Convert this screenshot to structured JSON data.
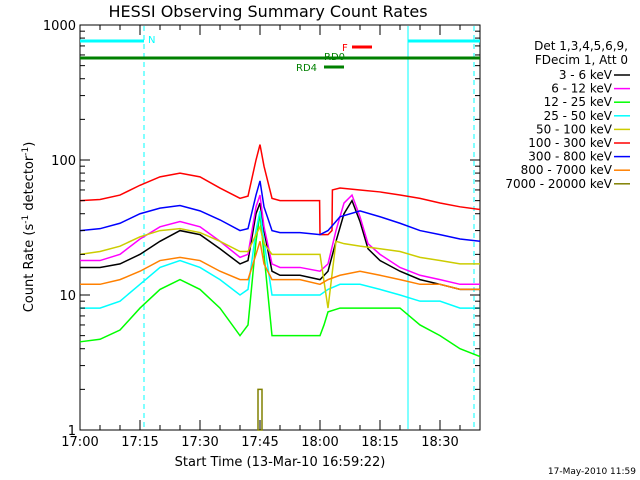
{
  "chart_data": {
    "type": "line",
    "title": "HESSI Observing Summary Count Rates",
    "xlabel": "Start Time (13-Mar-10 16:59:22)",
    "ylabel": "Count Rate (s⁻¹ detector⁻¹)",
    "ylabel_parts": {
      "main": "Count Rate (s",
      "exp1": "-1",
      "mid": " detector",
      "exp2": "-1",
      "end": ")"
    },
    "y_scale": "log",
    "ylim": [
      1,
      1000
    ],
    "xlim_minutes": [
      0,
      100
    ],
    "x_ticks": [
      {
        "label": "17:00",
        "minute": 0
      },
      {
        "label": "17:15",
        "minute": 15
      },
      {
        "label": "17:30",
        "minute": 30
      },
      {
        "label": "17:45",
        "minute": 45
      },
      {
        "label": "18:00",
        "minute": 60
      },
      {
        "label": "18:15",
        "minute": 75
      },
      {
        "label": "18:30",
        "minute": 90
      }
    ],
    "y_ticks": [
      {
        "label": "1",
        "value": 1
      },
      {
        "label": "10",
        "value": 10
      },
      {
        "label": "100",
        "value": 100
      },
      {
        "label": "1000",
        "value": 1000
      }
    ],
    "legend_header": [
      "Det 1,3,4,5,6,9,",
      "FDecim 1, Att 0"
    ],
    "legend_position": "right",
    "series": [
      {
        "name": "3 - 6 keV",
        "color": "#000000",
        "x": [
          0,
          5,
          10,
          15,
          20,
          25,
          30,
          35,
          40,
          42,
          44,
          45,
          46,
          48,
          50,
          55,
          60,
          62,
          64,
          66,
          68,
          70,
          72,
          75,
          80,
          85,
          90,
          95,
          100
        ],
        "y": [
          16,
          16,
          17,
          20,
          25,
          30,
          28,
          22,
          17,
          18,
          40,
          48,
          30,
          15,
          14,
          14,
          13,
          15,
          25,
          40,
          50,
          35,
          22,
          18,
          15,
          13,
          12,
          11,
          11
        ]
      },
      {
        "name": "6 - 12 keV",
        "color": "#ff00ff",
        "x": [
          0,
          5,
          10,
          15,
          20,
          25,
          30,
          35,
          40,
          42,
          44,
          45,
          46,
          48,
          50,
          55,
          60,
          62,
          64,
          66,
          68,
          70,
          72,
          75,
          80,
          85,
          90,
          95,
          100
        ],
        "y": [
          18,
          18,
          20,
          26,
          32,
          35,
          32,
          25,
          19,
          20,
          45,
          55,
          32,
          17,
          16,
          16,
          15,
          17,
          30,
          48,
          55,
          38,
          24,
          20,
          16,
          14,
          13,
          12,
          12
        ]
      },
      {
        "name": "12 - 25 keV",
        "color": "#00ff00",
        "x": [
          0,
          5,
          10,
          15,
          20,
          25,
          30,
          35,
          40,
          42,
          44,
          45,
          46,
          48,
          50,
          55,
          60,
          61,
          62,
          65,
          70,
          75,
          80,
          85,
          90,
          95,
          100
        ],
        "y": [
          4.5,
          4.7,
          5.5,
          8,
          11,
          13,
          11,
          8,
          5,
          6,
          25,
          40,
          20,
          5,
          5,
          5,
          5,
          6,
          7.5,
          8,
          8,
          8,
          8,
          6,
          5,
          4,
          3.5
        ]
      },
      {
        "name": "25 - 50 keV",
        "color": "#00ffff",
        "x": [
          0,
          5,
          10,
          15,
          20,
          25,
          30,
          35,
          40,
          42,
          44,
          45,
          46,
          48,
          50,
          55,
          60,
          62,
          65,
          70,
          75,
          80,
          85,
          90,
          95,
          100
        ],
        "y": [
          8,
          8,
          9,
          12,
          16,
          18,
          16,
          13,
          10,
          11,
          30,
          42,
          25,
          10,
          10,
          10,
          10,
          11,
          12,
          12,
          11,
          10,
          9,
          9,
          8,
          8
        ]
      },
      {
        "name": "50 - 100 keV",
        "color": "#cccc00",
        "x": [
          0,
          5,
          10,
          15,
          20,
          25,
          30,
          35,
          40,
          42,
          44,
          45,
          46,
          48,
          50,
          55,
          60,
          62,
          64,
          66,
          70,
          75,
          80,
          85,
          90,
          95,
          100
        ],
        "y": [
          20,
          21,
          23,
          27,
          30,
          31,
          29,
          25,
          21,
          21,
          28,
          32,
          24,
          20,
          20,
          20,
          20,
          8,
          25,
          24,
          23,
          22,
          21,
          19,
          18,
          17,
          17
        ]
      },
      {
        "name": "100 - 300 keV",
        "color": "#ff0000",
        "x": [
          0,
          5,
          10,
          15,
          20,
          25,
          30,
          35,
          40,
          42,
          44,
          45,
          46,
          48,
          50,
          55,
          59.9,
          60,
          62,
          63,
          63.1,
          65,
          70,
          75,
          80,
          85,
          90,
          95,
          100
        ],
        "y": [
          50,
          51,
          55,
          65,
          75,
          80,
          75,
          62,
          52,
          54,
          100,
          130,
          90,
          52,
          50,
          50,
          50,
          28,
          28,
          30,
          60,
          62,
          60,
          58,
          55,
          52,
          48,
          45,
          43
        ]
      },
      {
        "name": "300 - 800 keV",
        "color": "#0000ff",
        "x": [
          0,
          5,
          10,
          15,
          20,
          25,
          30,
          35,
          40,
          42,
          44,
          45,
          46,
          48,
          50,
          55,
          60,
          62,
          65,
          70,
          75,
          80,
          85,
          90,
          95,
          100
        ],
        "y": [
          30,
          31,
          34,
          40,
          44,
          46,
          42,
          36,
          30,
          31,
          55,
          70,
          45,
          30,
          29,
          29,
          28,
          30,
          38,
          42,
          38,
          34,
          30,
          28,
          26,
          25
        ]
      },
      {
        "name": "800 - 7000 keV",
        "color": "#ff8000",
        "x": [
          0,
          5,
          10,
          15,
          20,
          25,
          30,
          35,
          40,
          42,
          44,
          45,
          46,
          48,
          50,
          55,
          60,
          62,
          65,
          70,
          75,
          80,
          85,
          90,
          95,
          100
        ],
        "y": [
          12,
          12,
          13,
          15,
          18,
          19,
          18,
          15,
          13,
          13,
          20,
          25,
          17,
          13,
          13,
          13,
          12,
          13,
          14,
          15,
          14,
          13,
          12,
          12,
          11,
          11
        ]
      },
      {
        "name": "7000 - 20000 keV",
        "color": "#808000",
        "x": [
          44.5,
          45.5
        ],
        "y": [
          2,
          2
        ]
      }
    ],
    "state_bars": [
      {
        "label": "N",
        "color": "#00ffff",
        "segments": [
          [
            0,
            16
          ],
          [
            82,
            100
          ]
        ]
      },
      {
        "label": "F",
        "color": "#ff0000",
        "segments": [
          [
            68,
            73
          ]
        ]
      },
      {
        "label": "RD0",
        "color": "#008000",
        "segments": [
          [
            0,
            100
          ]
        ]
      },
      {
        "label": "RD4",
        "color": "#008000",
        "segments": [
          [
            61,
            66
          ]
        ]
      }
    ],
    "vlines": [
      {
        "minute": 16,
        "color": "#00ffff",
        "style": "dashed"
      },
      {
        "minute": 82,
        "color": "#00ffff",
        "style": "solid"
      },
      {
        "minute": 98.5,
        "color": "#00ffff",
        "style": "dashed"
      }
    ],
    "grid": false
  },
  "footer": {
    "timestamp": "17-May-2010 11:59"
  }
}
